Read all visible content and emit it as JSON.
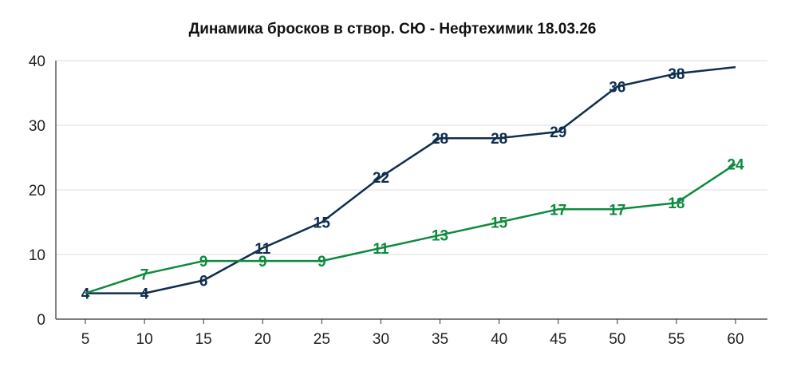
{
  "chart_data": {
    "type": "line",
    "title": "Динамика бросков в створ. СЮ - Нефтехимик 18.03.26",
    "xlabel": "",
    "ylabel": "",
    "x": [
      5,
      10,
      15,
      20,
      25,
      30,
      35,
      40,
      45,
      50,
      55,
      60
    ],
    "x_tick_labels": [
      "5",
      "10",
      "15",
      "20",
      "25",
      "30",
      "35",
      "40",
      "45",
      "50",
      "55",
      "60"
    ],
    "y_tick_labels": [
      "0",
      "10",
      "20",
      "30",
      "40"
    ],
    "ylim": [
      0,
      40
    ],
    "grid": true,
    "legend": "none",
    "series": [
      {
        "color": "#0f2e4f",
        "values": [
          4,
          4,
          6,
          11,
          15,
          22,
          28,
          28,
          29,
          36,
          38,
          39
        ],
        "labels": [
          "4",
          "4",
          "6",
          "11",
          "15",
          "22",
          "28",
          "28",
          "29",
          "36",
          "38",
          ""
        ]
      },
      {
        "color": "#0e8a3e",
        "values": [
          4,
          7,
          9,
          9,
          9,
          11,
          13,
          15,
          17,
          17,
          18,
          24
        ],
        "labels": [
          "",
          "7",
          "9",
          "9",
          "9",
          "11",
          "13",
          "15",
          "17",
          "17",
          "18",
          "24"
        ]
      }
    ]
  }
}
